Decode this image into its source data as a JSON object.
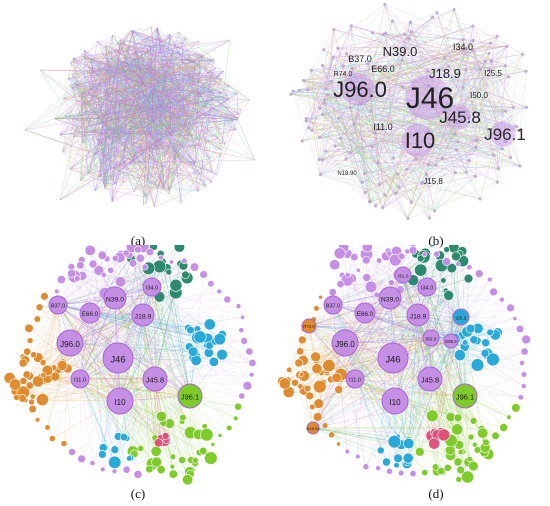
{
  "captions": {
    "a": "(a)",
    "b": "(b)",
    "c": "(c)",
    "d": "(d)"
  },
  "colors": {
    "purple": "#c58fe6",
    "purple_dark": "#a865d6",
    "teal": "#2e8a6e",
    "cyan": "#29a9d9",
    "green": "#7ecb2a",
    "orange": "#e08b2d",
    "pink": "#e0527a",
    "tan": "#cfa27a"
  },
  "panel_b": {
    "labels": [
      {
        "text": "J46",
        "big": 3
      },
      {
        "text": "J96.0",
        "big": 2
      },
      {
        "text": "I10",
        "big": 2
      },
      {
        "text": "J45.8",
        "big": 2
      },
      {
        "text": "J96.1",
        "big": 2
      },
      {
        "text": "J18.9",
        "big": 1
      },
      {
        "text": "N39.0",
        "big": 1
      },
      {
        "text": "E66.0",
        "big": 0
      },
      {
        "text": "B37.0",
        "big": 0
      },
      {
        "text": "I34.0",
        "big": 0
      },
      {
        "text": "I50.0",
        "big": 0
      },
      {
        "text": "I25.5",
        "big": 0
      },
      {
        "text": "I11.0",
        "big": 0
      },
      {
        "text": "R74.0",
        "big": 0
      },
      {
        "text": "J15.8",
        "big": 0
      },
      {
        "text": "N18.90",
        "big": 0
      }
    ]
  },
  "panel_c": {
    "hubs": [
      "J46",
      "J96.0",
      "I10",
      "J45.8",
      "J96.1",
      "J18.9",
      "N39.0",
      "E66.0",
      "B37.0",
      "I34.0",
      "I11.0"
    ]
  },
  "panel_d": {
    "hubs": [
      "J46",
      "J96.0",
      "I10",
      "J45.8",
      "J96.1",
      "J18.9",
      "N39.0",
      "E66.0",
      "B37.0",
      "I34.0",
      "I11.0",
      "I50.0",
      "I25.5",
      "I31.0",
      "R74.0",
      "N18.90",
      "E66.9"
    ]
  }
}
